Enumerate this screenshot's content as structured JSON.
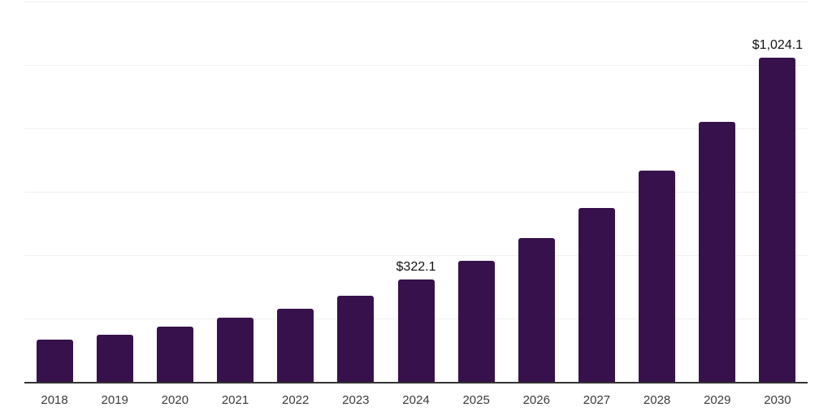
{
  "chart_data": {
    "type": "bar",
    "title": "",
    "xlabel": "",
    "ylabel": "",
    "categories": [
      "2018",
      "2019",
      "2020",
      "2021",
      "2022",
      "2023",
      "2024",
      "2025",
      "2026",
      "2027",
      "2028",
      "2029",
      "2030"
    ],
    "values": [
      133,
      149,
      174,
      202,
      230,
      273,
      322.1,
      381,
      455,
      549,
      667,
      820,
      1024.1
    ],
    "data_labels": [
      null,
      null,
      null,
      null,
      null,
      null,
      "$322.1",
      null,
      null,
      null,
      null,
      null,
      "$1,024.1"
    ],
    "ylim": [
      0,
      1200
    ],
    "gridline_step": 200,
    "grid": true,
    "legend": false,
    "colors": {
      "bar": "#37114b",
      "gridline": "#f0f0f0",
      "axis_line": "#333333",
      "tick_label": "#3b3b3b",
      "value_label": "#111111",
      "background": "#ffffff"
    }
  }
}
